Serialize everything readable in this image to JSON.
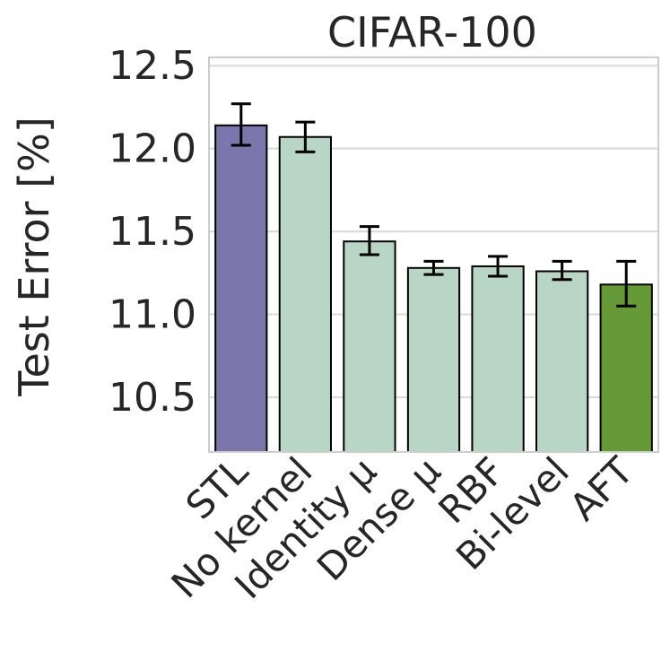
{
  "chart_data": {
    "type": "bar",
    "title": "CIFAR-100",
    "xlabel": "",
    "ylabel": "Test Error [%]",
    "ylim": [
      10.17,
      12.55
    ],
    "yticks": [
      10.5,
      11.0,
      11.5,
      12.0,
      12.5
    ],
    "ytick_labels": [
      "10.5",
      "11.0",
      "11.5",
      "12.0",
      "12.5"
    ],
    "grid": true,
    "legend": "none",
    "categories": [
      "STL",
      "No kernel",
      "Identity μ",
      "Dense μ",
      "RBF",
      "Bi-level",
      "AFT"
    ],
    "values": [
      12.14,
      12.07,
      11.44,
      11.28,
      11.29,
      11.26,
      11.18
    ],
    "error_low": [
      12.02,
      11.98,
      11.36,
      11.24,
      11.23,
      11.21,
      11.05
    ],
    "error_high": [
      12.27,
      12.16,
      11.53,
      11.32,
      11.35,
      11.32,
      11.32
    ],
    "colors": [
      "#7b76ac",
      "#b8d5c6",
      "#b8d5c6",
      "#b8d5c6",
      "#b8d5c6",
      "#b8d5c6",
      "#669a36"
    ],
    "edge_color": "#000000",
    "grid_color": "#d9d9d9"
  }
}
